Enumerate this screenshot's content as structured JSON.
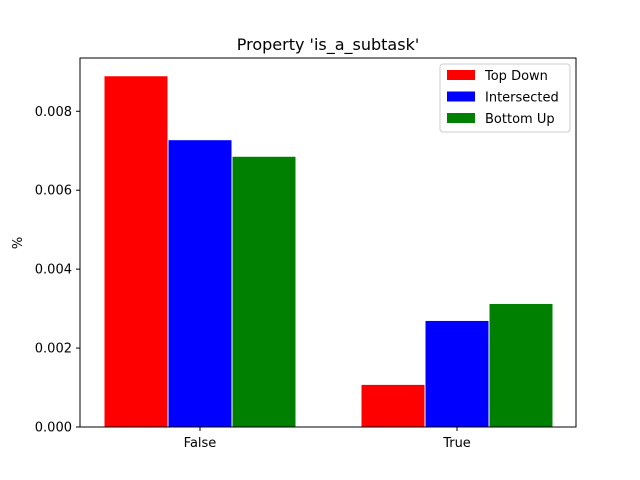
{
  "chart_data": {
    "type": "bar",
    "title": "Property 'is_a_subtask'",
    "xlabel": "",
    "ylabel": "%",
    "categories": [
      "False",
      "True"
    ],
    "series": [
      {
        "name": "Top Down",
        "color": "#ff0000",
        "values": [
          0.0089,
          0.00108
        ]
      },
      {
        "name": "Intersected",
        "color": "#0000ff",
        "values": [
          0.00728,
          0.0027
        ]
      },
      {
        "name": "Bottom Up",
        "color": "#008000",
        "values": [
          0.00686,
          0.00313
        ]
      }
    ],
    "ylim": [
      0,
      0.00935
    ],
    "yticks": [
      0.0,
      0.002,
      0.004,
      0.006,
      0.008
    ],
    "ytick_labels": [
      "0.000",
      "0.002",
      "0.004",
      "0.006",
      "0.008"
    ],
    "legend": "top-right",
    "grid": false
  }
}
